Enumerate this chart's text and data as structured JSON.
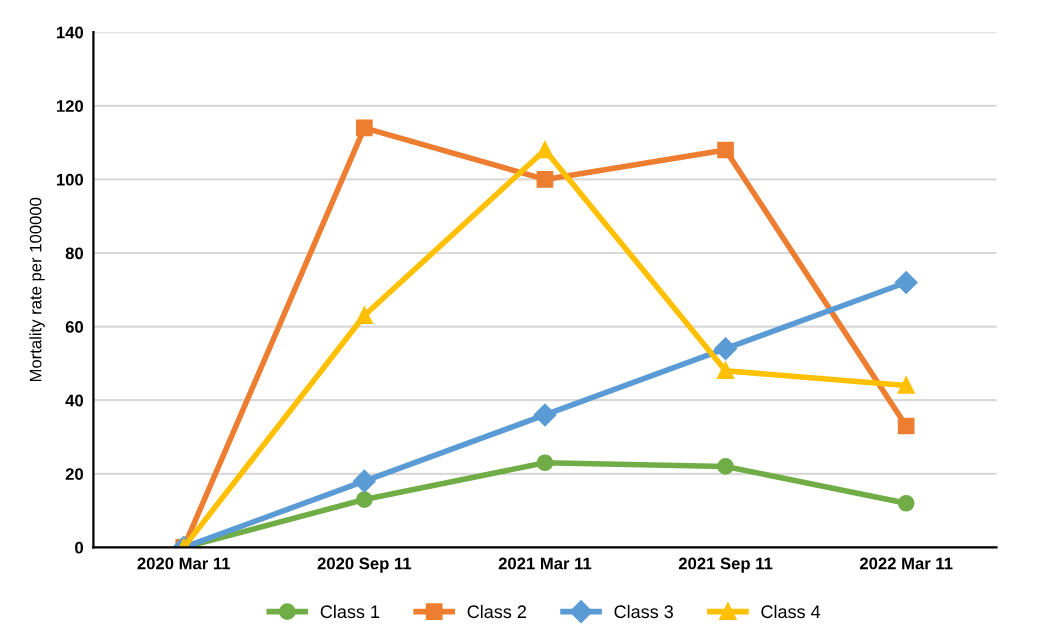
{
  "chart_data": {
    "type": "line",
    "ylabel": "Mortality rate per 100000",
    "categories": [
      "2020 Mar 11",
      "2020 Sep 11",
      "2021 Mar 11",
      "2021 Sep 11",
      "2022 Mar 11"
    ],
    "series": [
      {
        "name": "Class 1",
        "color": "#70ad47",
        "marker": "circle",
        "values": [
          0,
          13,
          23,
          22,
          12
        ]
      },
      {
        "name": "Class 2",
        "color": "#ed7d31",
        "marker": "square",
        "values": [
          0,
          114,
          100,
          108,
          33
        ]
      },
      {
        "name": "Class 3",
        "color": "#5b9bd5",
        "marker": "diamond",
        "values": [
          0,
          18,
          36,
          54,
          72
        ]
      },
      {
        "name": "Class 4",
        "color": "#ffc000",
        "marker": "triangle",
        "values": [
          0,
          63,
          108,
          48,
          44
        ]
      }
    ],
    "ylim": [
      0,
      140
    ],
    "yticks": [
      0,
      20,
      40,
      60,
      80,
      100,
      120,
      140
    ],
    "grid": "y",
    "legend": "bottom"
  }
}
